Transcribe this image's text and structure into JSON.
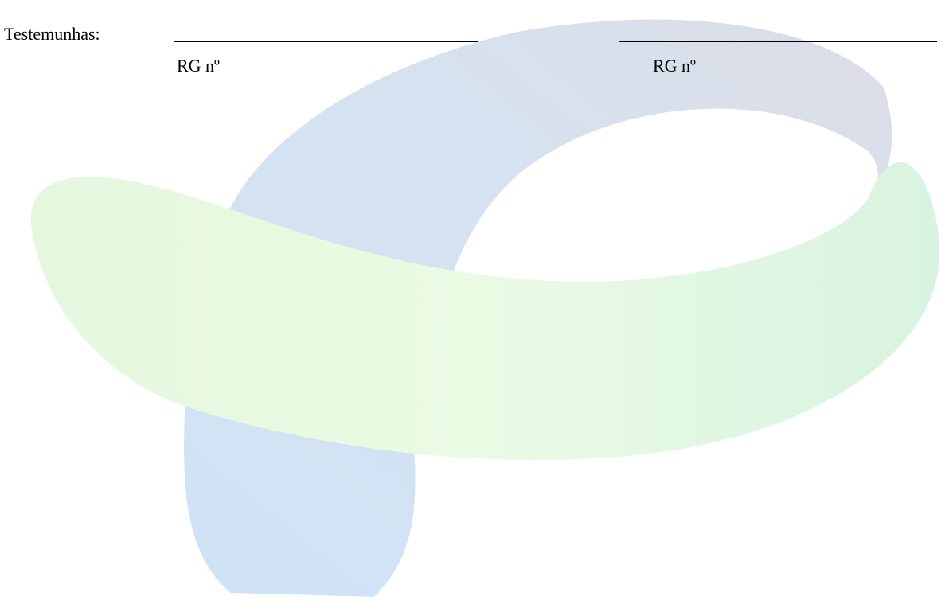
{
  "witnesses": {
    "label": "Testemunhas:",
    "signatures": [
      {
        "id_label": "RG nº"
      },
      {
        "id_label": "RG nº"
      }
    ]
  }
}
